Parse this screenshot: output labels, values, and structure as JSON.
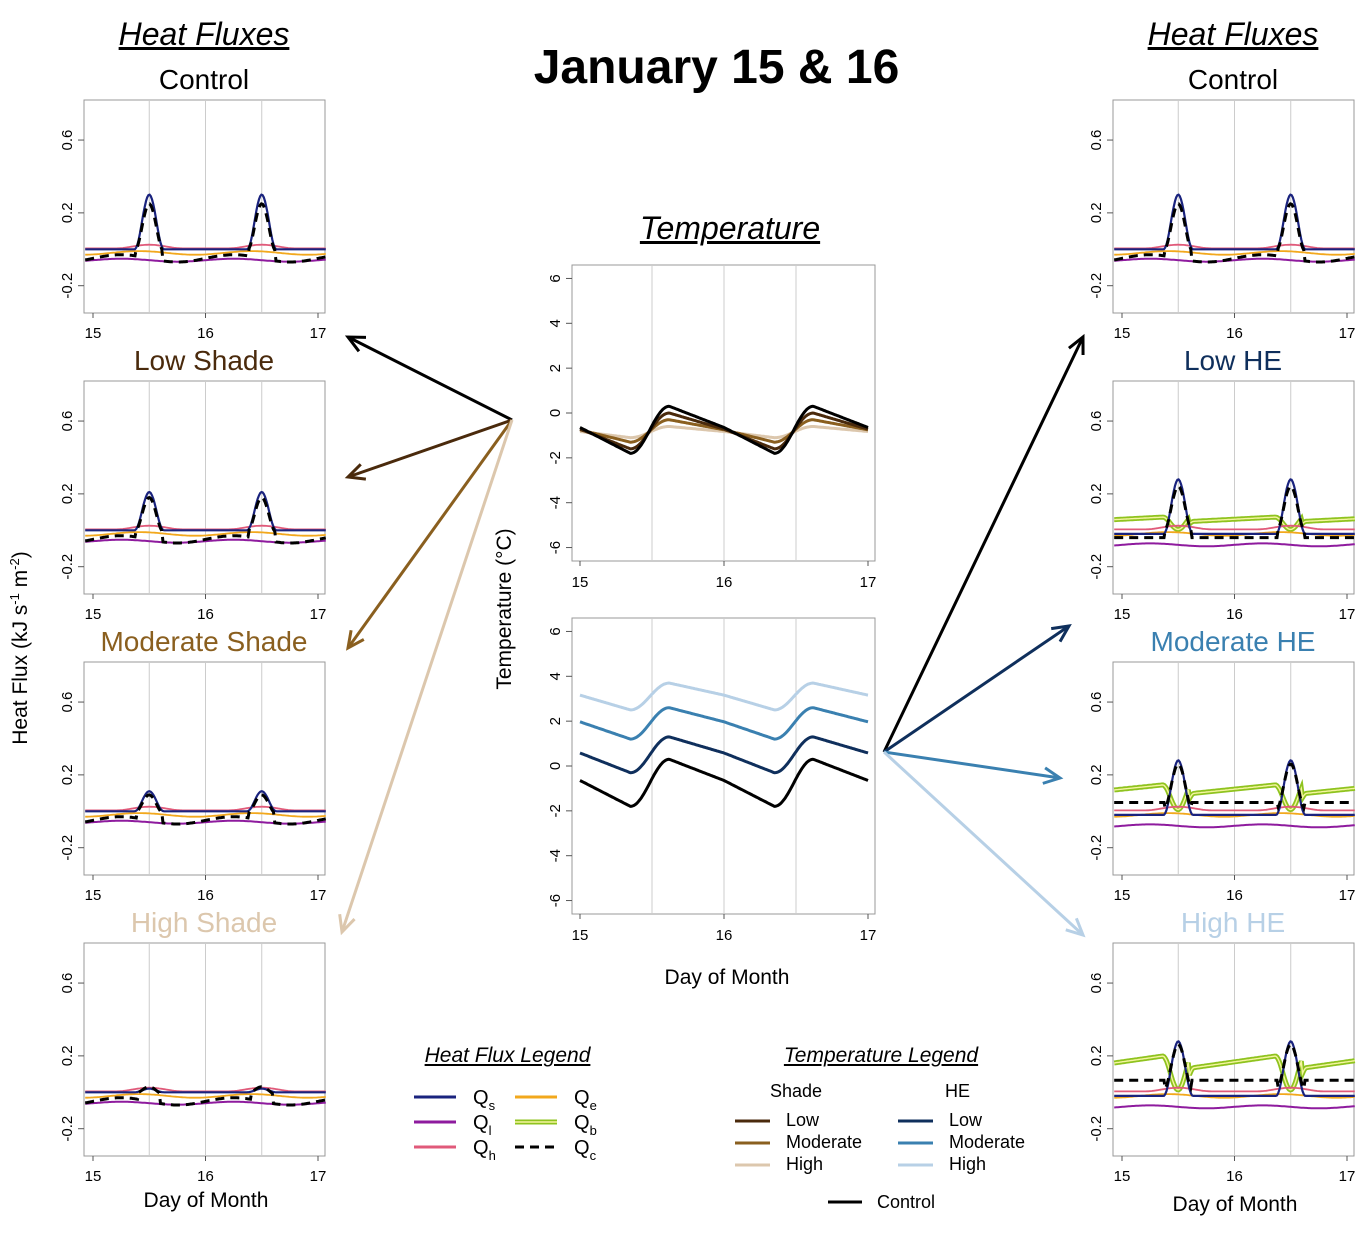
{
  "title": "January 15 & 16",
  "sections": {
    "left_header": "Heat Fluxes",
    "right_header": "Heat Fluxes",
    "center_header": "Temperature"
  },
  "axis_labels": {
    "heat_flux_ylabel": "Heat Flux (kJ s",
    "heat_flux_ylabel_sup1": "-1",
    "heat_flux_ylabel_mid": " m",
    "heat_flux_ylabel_sup2": "-2",
    "heat_flux_ylabel_end": ")",
    "temperature_ylabel": "Temperature (°C)",
    "xlabel": "Day of Month"
  },
  "colors": {
    "Qs": "#1a237e",
    "Ql": "#8e1b9e",
    "Qh": "#e05a7a",
    "Qe": "#f2a81d",
    "Qb": "#8fc31f",
    "Qc": "#000000",
    "shade_low": "#4a2a0c",
    "shade_moderate": "#8a5f1f",
    "shade_high": "#dcc7ad",
    "he_low": "#0f2f5c",
    "he_moderate": "#3a80b0",
    "he_high": "#b7d0e6",
    "control": "#000000"
  },
  "panels": {
    "left": [
      {
        "label": "Control",
        "color": "#000000"
      },
      {
        "label": "Low Shade",
        "color": "#4a2a0c"
      },
      {
        "label": "Moderate Shade",
        "color": "#8a5f1f"
      },
      {
        "label": "High Shade",
        "color": "#dcc7ad"
      }
    ],
    "right": [
      {
        "label": "Control",
        "color": "#000000"
      },
      {
        "label": "Low HE",
        "color": "#0f2f5c"
      },
      {
        "label": "Moderate HE",
        "color": "#3a80b0"
      },
      {
        "label": "High HE",
        "color": "#b7d0e6"
      }
    ]
  },
  "heat_flux_legend": {
    "title": "Heat Flux Legend",
    "items": [
      {
        "sym": "Q",
        "sub": "s",
        "key": "Qs"
      },
      {
        "sym": "Q",
        "sub": "e",
        "key": "Qe"
      },
      {
        "sym": "Q",
        "sub": "l",
        "key": "Ql"
      },
      {
        "sym": "Q",
        "sub": "b",
        "key": "Qb"
      },
      {
        "sym": "Q",
        "sub": "h",
        "key": "Qh"
      },
      {
        "sym": "Q",
        "sub": "c",
        "key": "Qc"
      }
    ]
  },
  "temperature_legend": {
    "title": "Temperature Legend",
    "col1_title": "Shade",
    "col2_title": "HE",
    "col1": [
      "Low",
      "Moderate",
      "High"
    ],
    "col2": [
      "Low",
      "Moderate",
      "High"
    ],
    "control": "Control"
  },
  "chart_data": [
    {
      "type": "line",
      "panel": "heat-flux-small-multiples",
      "x": [
        15,
        16,
        17
      ],
      "xlim": [
        15,
        17
      ],
      "ylim": [
        -0.35,
        0.82
      ],
      "y_ticks": [
        "-0.2",
        "0.2",
        "0.6"
      ],
      "x_ticks": [
        "15",
        "16",
        "17"
      ],
      "series_keys": [
        "Qs",
        "Ql",
        "Qh",
        "Qe",
        "Qb",
        "Qc"
      ],
      "peaks": {
        "Control": {
          "Qs": 0.3,
          "Qc": 0.26,
          "Qb": null
        },
        "Low Shade": {
          "Qs": 0.21,
          "Qc": 0.19,
          "Qb": null
        },
        "Moderate Shade": {
          "Qs": 0.11,
          "Qc": 0.1,
          "Qb": null
        },
        "High Shade": {
          "Qs": 0.02,
          "Qc": 0.04,
          "Qb": null
        },
        "Low HE": {
          "Qs": 0.3,
          "Qc": 0.25,
          "Qb": 0.08
        },
        "Moderate HE": {
          "Qs": 0.3,
          "Qc": 0.25,
          "Qb": 0.16
        },
        "High HE": {
          "Qs": 0.3,
          "Qc": 0.25,
          "Qb": 0.22
        }
      }
    },
    {
      "type": "line",
      "panel": "temperature-shade",
      "xlim": [
        15,
        17
      ],
      "ylim": [
        -6.6,
        6.6
      ],
      "x_ticks": [
        "15",
        "16",
        "17"
      ],
      "y_ticks": [
        "-6",
        "-4",
        "-2",
        "0",
        "2",
        "4",
        "6"
      ],
      "series": [
        {
          "name": "Control",
          "min": -1.8,
          "max": 0.3
        },
        {
          "name": "Low",
          "min": -1.6,
          "max": 0.0
        },
        {
          "name": "Moderate",
          "min": -1.3,
          "max": -0.3
        },
        {
          "name": "High",
          "min": -1.1,
          "max": -0.6
        }
      ]
    },
    {
      "type": "line",
      "panel": "temperature-he",
      "xlim": [
        15,
        17
      ],
      "ylim": [
        -6.6,
        6.6
      ],
      "x_ticks": [
        "15",
        "16",
        "17"
      ],
      "y_ticks": [
        "-6",
        "-4",
        "-2",
        "0",
        "2",
        "4",
        "6"
      ],
      "series": [
        {
          "name": "Control",
          "min": -1.8,
          "max": 0.3
        },
        {
          "name": "Low",
          "min": -0.3,
          "max": 1.3
        },
        {
          "name": "Moderate",
          "min": 1.2,
          "max": 2.6
        },
        {
          "name": "High",
          "min": 2.5,
          "max": 3.7
        }
      ]
    }
  ]
}
